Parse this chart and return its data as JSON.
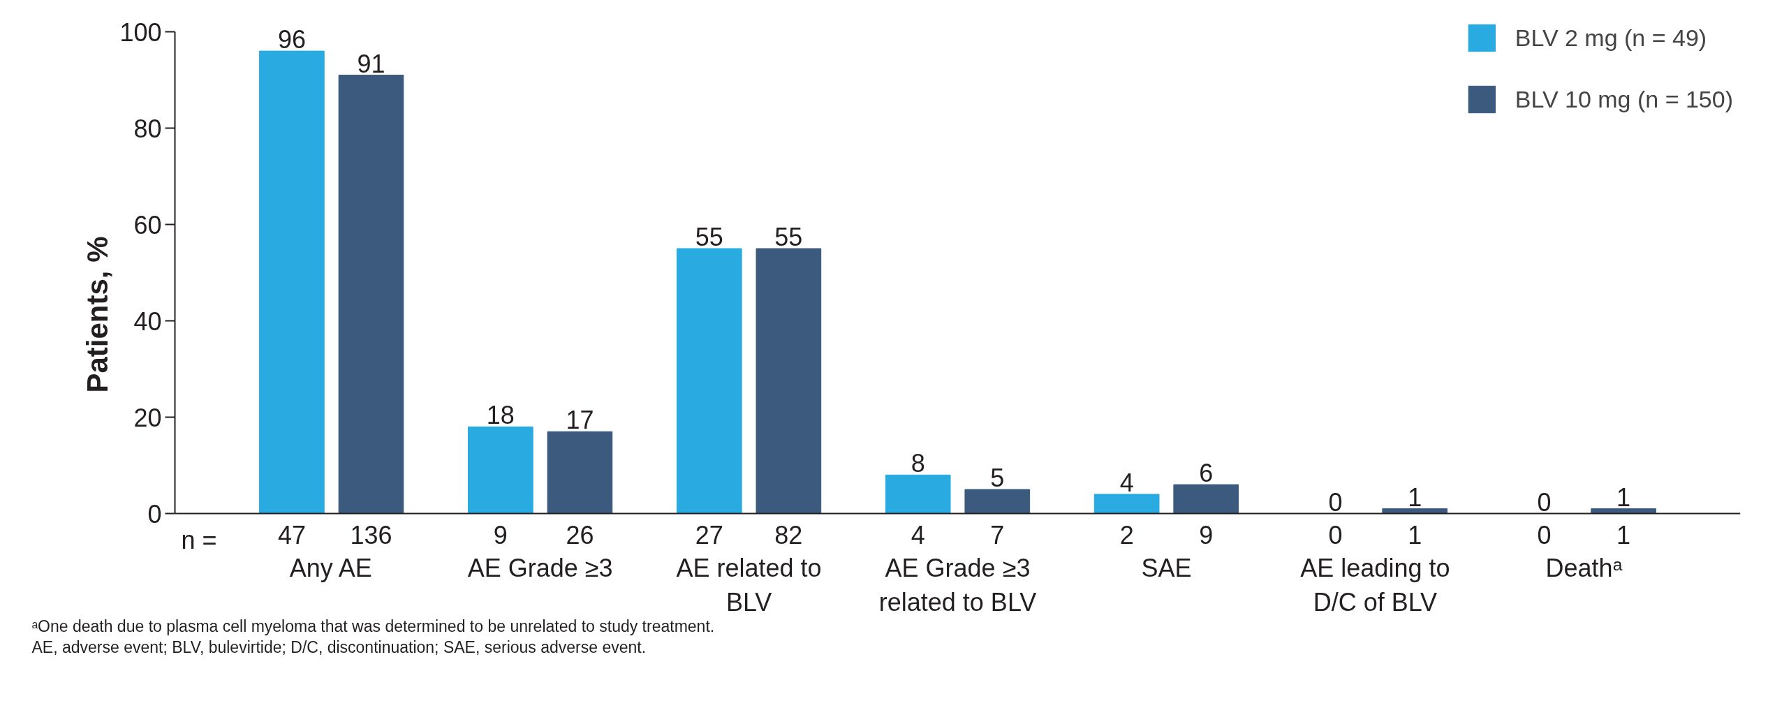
{
  "chart_data": {
    "type": "bar",
    "ylabel": "Patients, %",
    "categories": [
      "Any AE",
      "AE Grade ≥3",
      "AE related to\nBLV",
      "AE Grade ≥3\nrelated to BLV",
      "SAE",
      "AE leading to\nD/C of BLV",
      "Deathᵃ"
    ],
    "series": [
      {
        "name": "BLV 2 mg (n = 49)",
        "color": "#29abe2",
        "values": [
          96,
          18,
          55,
          8,
          4,
          0,
          0
        ]
      },
      {
        "name": "BLV 10 mg (n = 150)",
        "color": "#3b5a7d",
        "values": [
          91,
          17,
          55,
          5,
          6,
          1,
          1
        ]
      }
    ],
    "ylim": [
      0,
      100
    ],
    "yticks": [
      0,
      20,
      40,
      60,
      80,
      100
    ],
    "grid": false,
    "legend": "top right",
    "data_labels": true,
    "annotations": [
      "n =",
      "47",
      "136",
      "9",
      "26",
      "27",
      "82",
      "4",
      "7",
      "2",
      "9",
      "0",
      "1",
      "0",
      "1",
      "ᵃOne death due to plasma cell myeloma that was determined to be unrelated to study treatment.",
      "AE, adverse event; BLV, bulevirtide; D/C, discontinuation; SAE, serious adverse event."
    ]
  }
}
